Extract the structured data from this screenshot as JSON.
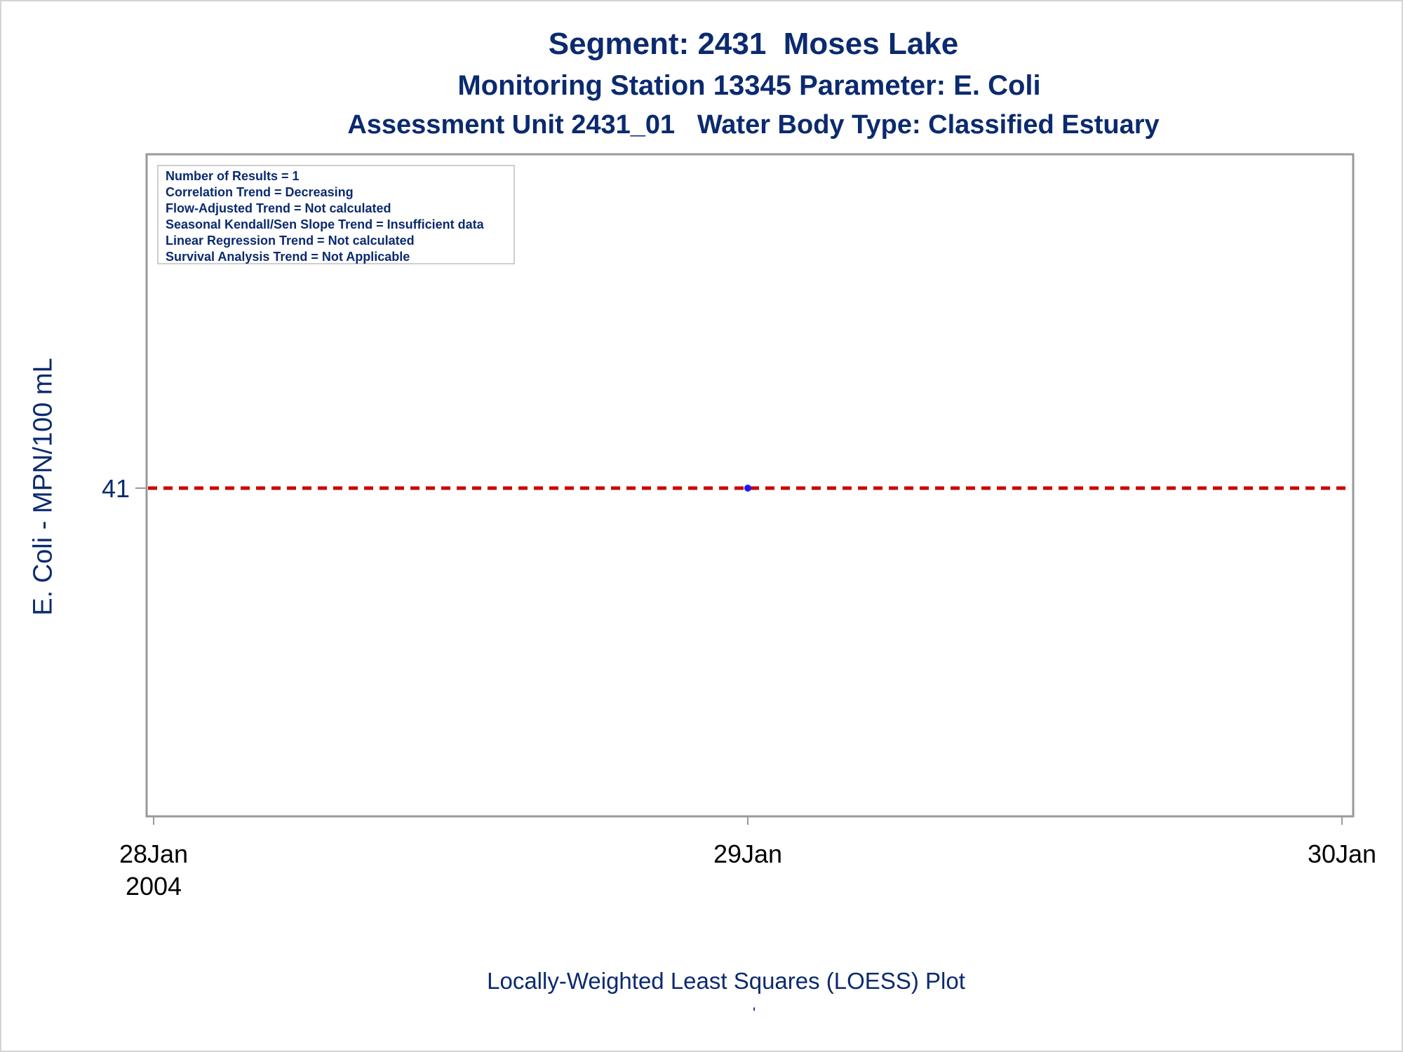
{
  "titles": {
    "line1": "Segment: 2431  Moses Lake",
    "line2": "Monitoring Station 13345 Parameter: E. Coli",
    "line3": "Assessment Unit 2431_01   Water Body Type: Classified Estuary"
  },
  "stats_box": [
    "Number of Results = 1",
    "Correlation Trend = Decreasing",
    "Flow-Adjusted Trend = Not calculated",
    "Seasonal Kendall/Sen Slope Trend = Insufficient data",
    "Linear Regression Trend = Not calculated",
    "Survival Analysis Trend = Not Applicable"
  ],
  "footnote": "Locally-Weighted Least Squares (LOESS) Plot",
  "footnote_mark": "'",
  "colors": {
    "text": "#0b2a6f",
    "point": "#1a1aff",
    "reference_line": "#cc0000",
    "axis": "#999999"
  },
  "chart_data": {
    "type": "scatter",
    "title": "",
    "xlabel": "",
    "ylabel": "E. Coli - MPN/100 mL",
    "x_ticks": [
      {
        "date": "2004-01-28",
        "label": "28Jan",
        "sublabel": "2004"
      },
      {
        "date": "2004-01-29",
        "label": "29Jan",
        "sublabel": ""
      },
      {
        "date": "2004-01-30",
        "label": "30Jan",
        "sublabel": ""
      }
    ],
    "y_ticks": [
      41
    ],
    "xlim": [
      "2004-01-28",
      "2004-01-30"
    ],
    "series": [
      {
        "points": [
          {
            "x": "2004-01-29",
            "y": 41
          }
        ]
      }
    ],
    "reference_lines": [
      {
        "y": 41,
        "style": "dashed"
      }
    ],
    "grid": false,
    "legend": "top-left"
  }
}
